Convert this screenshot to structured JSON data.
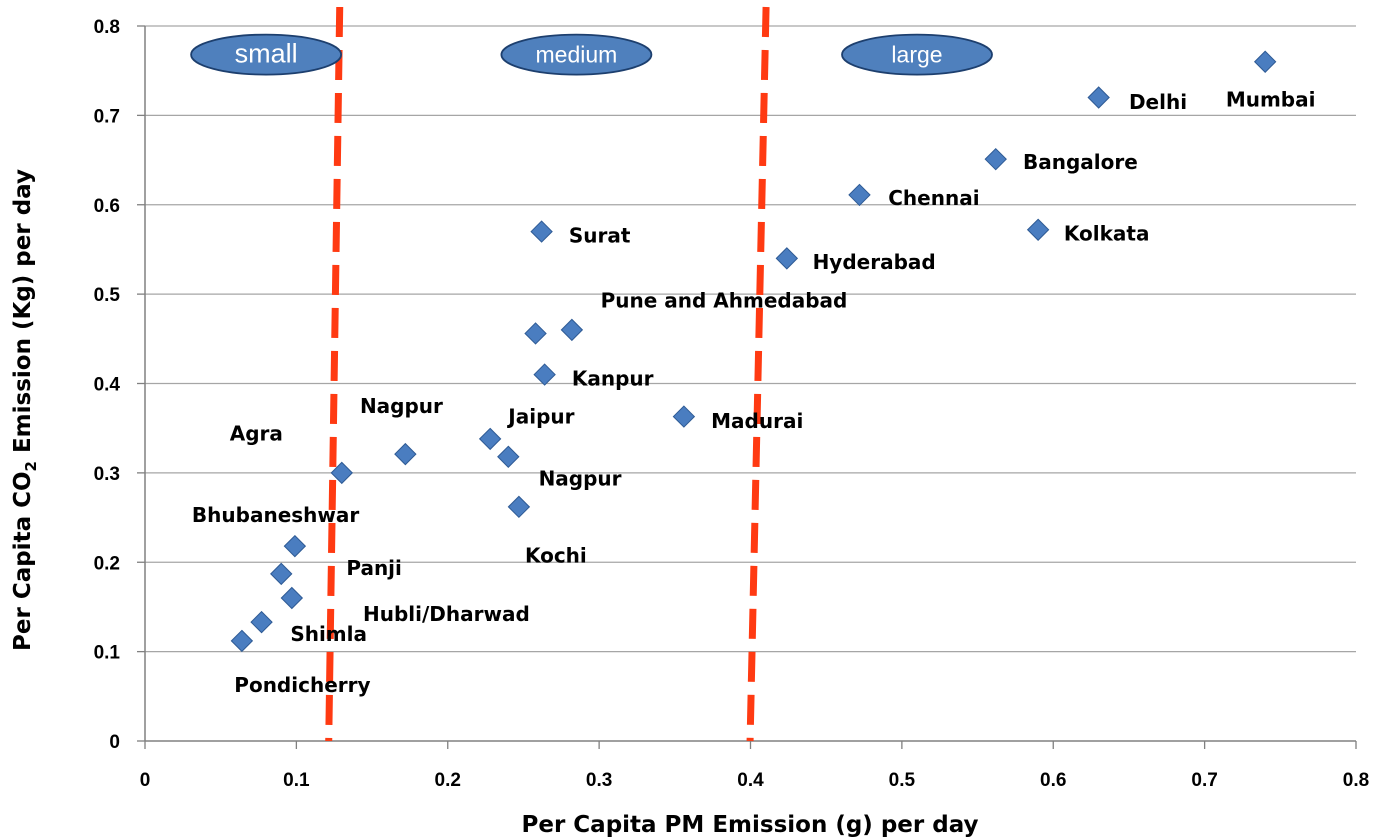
{
  "chart_data": {
    "type": "scatter",
    "xlabel": "Per Capita PM Emission (g) per day",
    "ylabel": {
      "pre": "Per Capita CO",
      "sub": "2",
      "post": " Emission (Kg) per day"
    },
    "xlim": [
      0,
      0.8
    ],
    "ylim": [
      0,
      0.8
    ],
    "xticks": [
      "0",
      "0.1",
      "0.2",
      "0.3",
      "0.4",
      "0.5",
      "0.6",
      "0.7",
      "0.8"
    ],
    "yticks": [
      "0",
      "0.1",
      "0.2",
      "0.3",
      "0.4",
      "0.5",
      "0.6",
      "0.7",
      "0.8"
    ],
    "grid": "horizontal",
    "marker_color": "#4a7dc0",
    "divider_color": "#ff3a12",
    "dividers": [
      0.125,
      0.405
    ],
    "categories": [
      {
        "label": "small",
        "x": 0.08,
        "y": 0.768
      },
      {
        "label": "medium",
        "x": 0.285,
        "y": 0.768
      },
      {
        "label": "large",
        "x": 0.51,
        "y": 0.768
      }
    ],
    "points": [
      {
        "x": 0.74,
        "y": 0.76
      },
      {
        "x": 0.63,
        "y": 0.72
      },
      {
        "x": 0.562,
        "y": 0.651
      },
      {
        "x": 0.472,
        "y": 0.611
      },
      {
        "x": 0.59,
        "y": 0.572
      },
      {
        "x": 0.424,
        "y": 0.54
      },
      {
        "x": 0.262,
        "y": 0.57
      },
      {
        "x": 0.282,
        "y": 0.46
      },
      {
        "x": 0.258,
        "y": 0.456
      },
      {
        "x": 0.264,
        "y": 0.41
      },
      {
        "x": 0.356,
        "y": 0.363
      },
      {
        "x": 0.228,
        "y": 0.338
      },
      {
        "x": 0.24,
        "y": 0.318
      },
      {
        "x": 0.172,
        "y": 0.321
      },
      {
        "x": 0.13,
        "y": 0.3
      },
      {
        "x": 0.247,
        "y": 0.262
      },
      {
        "x": 0.099,
        "y": 0.218
      },
      {
        "x": 0.09,
        "y": 0.187
      },
      {
        "x": 0.097,
        "y": 0.16
      },
      {
        "x": 0.077,
        "y": 0.133
      },
      {
        "x": 0.064,
        "y": 0.112
      }
    ],
    "annotations": [
      {
        "text": "Mumbai",
        "x": 0.714,
        "y": 0.71
      },
      {
        "text": "Delhi",
        "x": 0.65,
        "y": 0.707
      },
      {
        "text": "Bangalore",
        "x": 0.58,
        "y": 0.64
      },
      {
        "text": "Chennai",
        "x": 0.491,
        "y": 0.6
      },
      {
        "text": "Kolkata",
        "x": 0.607,
        "y": 0.56
      },
      {
        "text": "Hyderabad",
        "x": 0.441,
        "y": 0.528
      },
      {
        "text": "Surat",
        "x": 0.28,
        "y": 0.558
      },
      {
        "text": "Pune and Ahmedabad",
        "x": 0.301,
        "y": 0.485
      },
      {
        "text": "Kanpur",
        "x": 0.282,
        "y": 0.398
      },
      {
        "text": "Madurai",
        "x": 0.374,
        "y": 0.35
      },
      {
        "text": "Nagpur",
        "x": 0.142,
        "y": 0.367
      },
      {
        "text": "Jaipur",
        "x": 0.24,
        "y": 0.355
      },
      {
        "text": "Agra",
        "x": 0.056,
        "y": 0.336
      },
      {
        "text": "Nagpur",
        "x": 0.26,
        "y": 0.286
      },
      {
        "text": "Bhubaneshwar",
        "x": 0.031,
        "y": 0.245
      },
      {
        "text": "Panji",
        "x": 0.133,
        "y": 0.186
      },
      {
        "text": "Kochi",
        "x": 0.251,
        "y": 0.2
      },
      {
        "text": "Hubli/Dharwad",
        "x": 0.144,
        "y": 0.134
      },
      {
        "text": "Shimla",
        "x": 0.096,
        "y": 0.112
      },
      {
        "text": "Pondicherry",
        "x": 0.059,
        "y": 0.055
      }
    ]
  }
}
